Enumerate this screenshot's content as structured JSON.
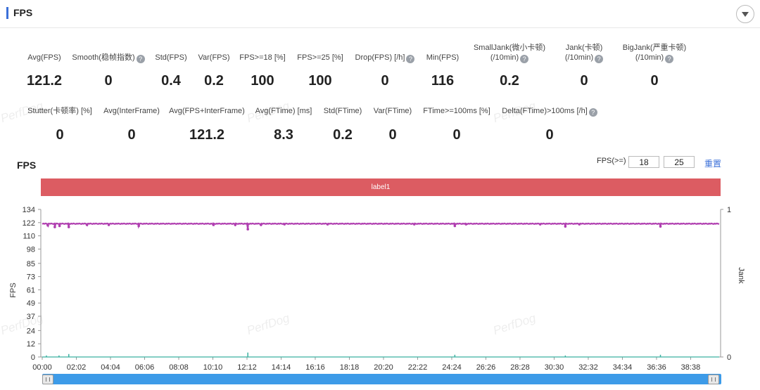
{
  "header": {
    "title": "FPS"
  },
  "metrics_row1": [
    {
      "label": "Avg(FPS)",
      "value": "121.2",
      "help": false
    },
    {
      "label": "Smooth(稳帧指数)",
      "value": "0",
      "help": true
    },
    {
      "label": "Std(FPS)",
      "value": "0.4",
      "help": false
    },
    {
      "label": "Var(FPS)",
      "value": "0.2",
      "help": false
    },
    {
      "label": "FPS>=18 [%]",
      "value": "100",
      "help": false
    },
    {
      "label": "FPS>=25 [%]",
      "value": "100",
      "help": false
    },
    {
      "label": "Drop(FPS) [/h]",
      "value": "0",
      "help": true
    },
    {
      "label": "Min(FPS)",
      "value": "116",
      "help": false
    },
    {
      "label": "SmallJank(微小卡顿)",
      "label2": "(/10min)",
      "value": "0.2",
      "help": true
    },
    {
      "label": "Jank(卡顿)",
      "label2": "(/10min)",
      "value": "0",
      "help": true
    },
    {
      "label": "BigJank(严重卡顿)",
      "label2": "(/10min)",
      "value": "0",
      "help": true
    }
  ],
  "metrics_row2": [
    {
      "label": "Stutter(卡顿率) [%]",
      "value": "0",
      "help": false
    },
    {
      "label": "Avg(InterFrame)",
      "value": "0",
      "help": false
    },
    {
      "label": "Avg(FPS+InterFrame)",
      "value": "121.2",
      "help": false
    },
    {
      "label": "Avg(FTime) [ms]",
      "value": "8.3",
      "help": false
    },
    {
      "label": "Std(FTime)",
      "value": "0.2",
      "help": false
    },
    {
      "label": "Var(FTime)",
      "value": "0",
      "help": false
    },
    {
      "label": "FTime>=100ms [%]",
      "value": "0",
      "help": false
    },
    {
      "label": "Delta(FTime)>100ms [/h]",
      "value": "0",
      "help": true
    }
  ],
  "watermark": "PerfDog",
  "chart_controls": {
    "title": "FPS",
    "threshold_label": "FPS(>=)",
    "threshold1": "18",
    "threshold2": "25",
    "reset_label": "重置"
  },
  "label_band": "label1",
  "colors": {
    "accent": "#3a6fd8",
    "fps_line": "#b03fb0",
    "jank_line": "#3bb0a0",
    "label_band": "#dc5c62",
    "scrollbar": "#3d9be8"
  },
  "chart_data": {
    "type": "line",
    "title": "",
    "xlabel": "",
    "ylabel": "FPS",
    "y2label": "Jank",
    "ylim": [
      0,
      134
    ],
    "y2lim": [
      0,
      1
    ],
    "yticks": [
      0,
      12,
      24,
      37,
      49,
      61,
      73,
      85,
      98,
      110,
      122,
      134
    ],
    "y2ticks": [
      0,
      1
    ],
    "x_ticks": [
      "00:00",
      "02:02",
      "04:04",
      "06:06",
      "08:08",
      "10:10",
      "12:12",
      "14:14",
      "16:16",
      "18:18",
      "20:20",
      "22:22",
      "24:24",
      "26:26",
      "28:28",
      "30:30",
      "32:32",
      "34:34",
      "36:36",
      "38:38"
    ],
    "x_tick_seconds": [
      0,
      122,
      244,
      366,
      488,
      610,
      732,
      854,
      976,
      1098,
      1220,
      1342,
      1464,
      1586,
      1708,
      1830,
      1952,
      2074,
      2196,
      2318
    ],
    "x_range_seconds": [
      0,
      2420
    ],
    "grid": false,
    "series": [
      {
        "name": "FPS",
        "axis": "left",
        "baseline": 121,
        "dips": [
          [
            20,
            119.5
          ],
          [
            45,
            118
          ],
          [
            62,
            119
          ],
          [
            95,
            118
          ],
          [
            160,
            120
          ],
          [
            238,
            120
          ],
          [
            345,
            119
          ],
          [
            612,
            120
          ],
          [
            690,
            120
          ],
          [
            735,
            116
          ],
          [
            782,
            120
          ],
          [
            866,
            120.5
          ],
          [
            1020,
            120.5
          ],
          [
            1330,
            120.5
          ],
          [
            1475,
            119
          ],
          [
            1515,
            120.5
          ],
          [
            1780,
            120.5
          ],
          [
            1870,
            118.5
          ],
          [
            1920,
            120.5
          ],
          [
            2210,
            118.5
          ]
        ]
      },
      {
        "name": "Jank",
        "axis": "right",
        "baseline": 0,
        "spikes": [
          [
            15,
            0.01
          ],
          [
            60,
            0.01
          ],
          [
            95,
            0.02
          ],
          [
            735,
            0.03
          ],
          [
            1475,
            0.015
          ],
          [
            1870,
            0.01
          ],
          [
            2210,
            0.015
          ]
        ]
      }
    ]
  }
}
